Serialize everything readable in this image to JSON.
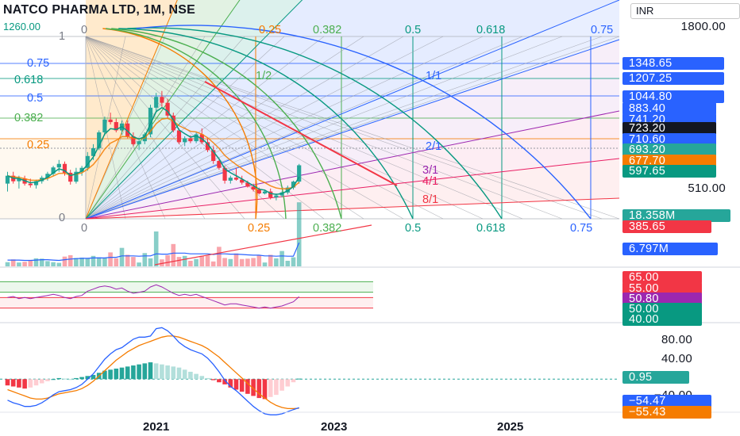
{
  "header": {
    "title": "NATCO PHARMA LTD, 1M, NSE",
    "currency": "INR",
    "left_price_hint": "1260.00"
  },
  "fib_time_labels": [
    "0",
    "0.25",
    "0.382",
    "0.5",
    "0.618",
    "0.75"
  ],
  "fib_price_labels": {
    "l1": "1",
    "l075": "0.75",
    "l0618": "0.618",
    "l05": "0.5",
    "l0382": "0.382",
    "l025": "0.25",
    "l0": "0"
  },
  "fan_labels": [
    "1/2",
    "1/1",
    "2/1",
    "3/1",
    "4/1",
    "8/1"
  ],
  "price_axis": {
    "p1800": "1800.00",
    "p510": "510.00"
  },
  "price_tags": [
    {
      "text": "1348.65",
      "color": "#2962ff"
    },
    {
      "text": "1207.25",
      "color": "#2962ff"
    },
    {
      "text": "1044.80",
      "color": "#2962ff"
    },
    {
      "text": "883.40",
      "color": "#2962ff"
    },
    {
      "text": "741.20",
      "color": "#2962ff"
    },
    {
      "text": "723.20",
      "color": "#131722"
    },
    {
      "text": "710.60",
      "color": "#2962ff"
    },
    {
      "text": "693.20",
      "color": "#26a69a"
    },
    {
      "text": "677.70",
      "color": "#f57c00"
    },
    {
      "text": "597.65",
      "color": "#089981"
    },
    {
      "text": "18.358M",
      "color": "#26a69a"
    },
    {
      "text": "385.65",
      "color": "#f23645"
    },
    {
      "text": "6.797M",
      "color": "#2962ff"
    }
  ],
  "rsi_tags": [
    {
      "text": "65.00",
      "color": "#f23645"
    },
    {
      "text": "55.00",
      "color": "#f23645"
    },
    {
      "text": "50.80",
      "color": "#9c27b0"
    },
    {
      "text": "50.00",
      "color": "#089981"
    },
    {
      "text": "40.00",
      "color": "#089981"
    }
  ],
  "macd_axis": {
    "m80": "80.00",
    "m40": "40.00",
    "mneg40": "−40.00"
  },
  "macd_tags": [
    {
      "text": "0.95",
      "color": "#26a69a"
    },
    {
      "text": "−54.47",
      "color": "#2962ff"
    },
    {
      "text": "−55.43",
      "color": "#f57c00"
    }
  ],
  "time_axis": [
    "2021",
    "2023",
    "2025"
  ],
  "colors": {
    "up": "#26a69a",
    "down": "#f23645",
    "fib_grid": "#2962ff",
    "fan_green": "#089981",
    "trend_red": "#f23645",
    "ema_orange": "#f57c00"
  },
  "chart_data": {
    "type": "candlestick",
    "title": "NATCO PHARMA LTD, 1M, NSE",
    "candles": [
      {
        "o": 600,
        "h": 660,
        "l": 560,
        "c": 640
      },
      {
        "o": 640,
        "h": 660,
        "l": 600,
        "c": 612
      },
      {
        "o": 612,
        "h": 640,
        "l": 575,
        "c": 625
      },
      {
        "o": 625,
        "h": 640,
        "l": 590,
        "c": 600
      },
      {
        "o": 600,
        "h": 625,
        "l": 580,
        "c": 592
      },
      {
        "o": 592,
        "h": 620,
        "l": 575,
        "c": 612
      },
      {
        "o": 612,
        "h": 640,
        "l": 600,
        "c": 630
      },
      {
        "o": 630,
        "h": 660,
        "l": 615,
        "c": 650
      },
      {
        "o": 650,
        "h": 690,
        "l": 640,
        "c": 682
      },
      {
        "o": 682,
        "h": 720,
        "l": 660,
        "c": 700
      },
      {
        "o": 700,
        "h": 712,
        "l": 640,
        "c": 655
      },
      {
        "o": 655,
        "h": 670,
        "l": 595,
        "c": 610
      },
      {
        "o": 610,
        "h": 680,
        "l": 600,
        "c": 660
      },
      {
        "o": 660,
        "h": 690,
        "l": 640,
        "c": 680
      },
      {
        "o": 680,
        "h": 760,
        "l": 665,
        "c": 740
      },
      {
        "o": 740,
        "h": 800,
        "l": 720,
        "c": 780
      },
      {
        "o": 780,
        "h": 870,
        "l": 770,
        "c": 860
      },
      {
        "o": 860,
        "h": 940,
        "l": 845,
        "c": 925
      },
      {
        "o": 925,
        "h": 960,
        "l": 900,
        "c": 912
      },
      {
        "o": 912,
        "h": 930,
        "l": 860,
        "c": 870
      },
      {
        "o": 870,
        "h": 920,
        "l": 850,
        "c": 905
      },
      {
        "o": 905,
        "h": 920,
        "l": 830,
        "c": 840
      },
      {
        "o": 840,
        "h": 860,
        "l": 790,
        "c": 800
      },
      {
        "o": 800,
        "h": 830,
        "l": 770,
        "c": 815
      },
      {
        "o": 815,
        "h": 860,
        "l": 800,
        "c": 850
      },
      {
        "o": 850,
        "h": 1000,
        "l": 835,
        "c": 985
      },
      {
        "o": 985,
        "h": 1060,
        "l": 960,
        "c": 1040
      },
      {
        "o": 1040,
        "h": 1070,
        "l": 990,
        "c": 1010
      },
      {
        "o": 1010,
        "h": 1030,
        "l": 930,
        "c": 945
      },
      {
        "o": 945,
        "h": 960,
        "l": 860,
        "c": 870
      },
      {
        "o": 870,
        "h": 880,
        "l": 800,
        "c": 810
      },
      {
        "o": 810,
        "h": 840,
        "l": 790,
        "c": 830
      },
      {
        "o": 830,
        "h": 845,
        "l": 805,
        "c": 815
      },
      {
        "o": 815,
        "h": 860,
        "l": 805,
        "c": 850
      },
      {
        "o": 850,
        "h": 880,
        "l": 800,
        "c": 810
      },
      {
        "o": 810,
        "h": 830,
        "l": 760,
        "c": 770
      },
      {
        "o": 770,
        "h": 790,
        "l": 700,
        "c": 715
      },
      {
        "o": 715,
        "h": 730,
        "l": 670,
        "c": 680
      },
      {
        "o": 680,
        "h": 690,
        "l": 600,
        "c": 615
      },
      {
        "o": 615,
        "h": 640,
        "l": 600,
        "c": 630
      },
      {
        "o": 630,
        "h": 680,
        "l": 615,
        "c": 620
      },
      {
        "o": 620,
        "h": 640,
        "l": 595,
        "c": 605
      },
      {
        "o": 605,
        "h": 615,
        "l": 580,
        "c": 585
      },
      {
        "o": 585,
        "h": 600,
        "l": 560,
        "c": 570
      },
      {
        "o": 570,
        "h": 580,
        "l": 545,
        "c": 550
      },
      {
        "o": 550,
        "h": 570,
        "l": 545,
        "c": 560
      },
      {
        "o": 560,
        "h": 575,
        "l": 520,
        "c": 530
      },
      {
        "o": 530,
        "h": 550,
        "l": 515,
        "c": 540
      },
      {
        "o": 540,
        "h": 560,
        "l": 530,
        "c": 555
      },
      {
        "o": 555,
        "h": 590,
        "l": 545,
        "c": 580
      },
      {
        "o": 580,
        "h": 615,
        "l": 570,
        "c": 610
      },
      {
        "o": 610,
        "h": 700,
        "l": 600,
        "c": 693
      }
    ],
    "volume": [
      1.2,
      2.0,
      1.1,
      1.3,
      1.7,
      2.3,
      2.2,
      1.5,
      1.2,
      1.0,
      2.8,
      3.2,
      2.4,
      2.5,
      2.3,
      3.0,
      2.6,
      2.5,
      4.0,
      2.3,
      5.3,
      3.3,
      2.7,
      1.1,
      3.8,
      2.3,
      10.0,
      2.0,
      3.2,
      6.4,
      2.7,
      3.0,
      1.6,
      2.1,
      3.0,
      3.1,
      1.4,
      5.6,
      2.4,
      2.1,
      3.7,
      2.1,
      2.2,
      2.4,
      3.1,
      1.1,
      3.3,
      2.3,
      4.4,
      1.6,
      2.6,
      18.358
    ],
    "volume_ma": [
      1.8,
      1.8,
      1.8,
      1.7,
      1.7,
      1.8,
      1.9,
      1.9,
      1.8,
      1.7,
      1.9,
      2.1,
      2.2,
      2.3,
      2.3,
      2.4,
      2.4,
      2.4,
      2.6,
      2.6,
      3.0,
      3.0,
      3.0,
      2.9,
      3.0,
      3.0,
      3.6,
      3.5,
      3.5,
      3.8,
      3.8,
      3.8,
      3.6,
      3.6,
      3.6,
      3.6,
      3.4,
      3.6,
      3.6,
      3.5,
      3.5,
      3.4,
      3.3,
      3.2,
      3.2,
      3.0,
      3.0,
      2.9,
      3.0,
      2.9,
      2.9,
      6.797
    ],
    "rsi": [
      50,
      51,
      49,
      50,
      49,
      50,
      51,
      52,
      53,
      52,
      50,
      49,
      51,
      52,
      56,
      58,
      60,
      61,
      60,
      58,
      59,
      56,
      54,
      55,
      56,
      60,
      62,
      60,
      57,
      54,
      52,
      53,
      52,
      53,
      51,
      49,
      47,
      45,
      43,
      44,
      44,
      43,
      42,
      41,
      40,
      41,
      40,
      41,
      42,
      44,
      46,
      50.8
    ],
    "rsi_levels": [
      65,
      55,
      50,
      40
    ],
    "macd_hist": [
      -12,
      -14,
      -16,
      -18,
      -16,
      -12,
      -8,
      -4,
      0,
      2,
      1,
      0,
      2,
      4,
      6,
      8,
      12,
      16,
      18,
      20,
      22,
      24,
      26,
      28,
      30,
      32,
      30,
      28,
      26,
      24,
      22,
      18,
      14,
      10,
      6,
      2,
      -2,
      -6,
      -10,
      -16,
      -20,
      -24,
      -28,
      -32,
      -36,
      -38,
      -34,
      -30,
      -22,
      -14,
      -6,
      0.95
    ],
    "macd_line": [
      -40,
      -45,
      -48,
      -52,
      -52,
      -50,
      -45,
      -38,
      -30,
      -24,
      -22,
      -20,
      -16,
      -10,
      0,
      10,
      24,
      38,
      48,
      56,
      60,
      68,
      76,
      80,
      80,
      82,
      96,
      98,
      92,
      82,
      70,
      62,
      56,
      52,
      48,
      40,
      28,
      14,
      -2,
      -14,
      -22,
      -32,
      -42,
      -52,
      -60,
      -66,
      -68,
      -68,
      -66,
      -62,
      -58,
      -54.47
    ],
    "signal_line": [
      -20,
      -24,
      -28,
      -32,
      -36,
      -38,
      -38,
      -36,
      -32,
      -28,
      -26,
      -24,
      -22,
      -18,
      -12,
      -4,
      6,
      16,
      26,
      36,
      44,
      52,
      58,
      64,
      68,
      72,
      76,
      80,
      82,
      82,
      80,
      76,
      72,
      68,
      64,
      58,
      50,
      42,
      32,
      22,
      12,
      2,
      -8,
      -18,
      -28,
      -36,
      -44,
      -50,
      -54,
      -56,
      -56,
      -55.43
    ],
    "macd_ylim": [
      -60,
      100
    ]
  }
}
